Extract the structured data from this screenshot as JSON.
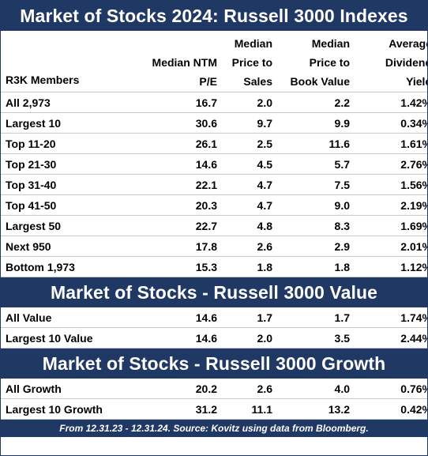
{
  "title": "Market of Stocks 2024: Russell 3000 Indexes",
  "columns": {
    "c0": "R3K Members",
    "c1": [
      "Median NTM",
      "P/E"
    ],
    "c2": [
      "Median",
      "Price to",
      "Sales"
    ],
    "c3": [
      "Median",
      "Price to",
      "Book Value"
    ],
    "c4": [
      "Average",
      "Dividend",
      "Yield"
    ]
  },
  "sections": [
    {
      "title": "",
      "rows": [
        {
          "label": "All 2,973",
          "pe": "16.7",
          "ps": "2.0",
          "pb": "2.2",
          "dy": "1.42%"
        },
        {
          "label": "Largest 10",
          "pe": "30.6",
          "ps": "9.7",
          "pb": "9.9",
          "dy": "0.34%"
        },
        {
          "label": "Top 11-20",
          "pe": "26.1",
          "ps": "2.5",
          "pb": "11.6",
          "dy": "1.61%"
        },
        {
          "label": "Top 21-30",
          "pe": "14.6",
          "ps": "4.5",
          "pb": "5.7",
          "dy": "2.76%"
        },
        {
          "label": "Top 31-40",
          "pe": "22.1",
          "ps": "4.7",
          "pb": "7.5",
          "dy": "1.56%"
        },
        {
          "label": "Top 41-50",
          "pe": "20.3",
          "ps": "4.7",
          "pb": "9.0",
          "dy": "2.19%"
        },
        {
          "label": "Largest 50",
          "pe": "22.7",
          "ps": "4.8",
          "pb": "8.3",
          "dy": "1.69%"
        },
        {
          "label": "Next 950",
          "pe": "17.8",
          "ps": "2.6",
          "pb": "2.9",
          "dy": "2.01%"
        },
        {
          "label": "Bottom 1,973",
          "pe": "15.3",
          "ps": "1.8",
          "pb": "1.8",
          "dy": "1.12%"
        }
      ]
    },
    {
      "title": "Market of Stocks - Russell 3000 Value",
      "rows": [
        {
          "label": "All Value",
          "pe": "14.6",
          "ps": "1.7",
          "pb": "1.7",
          "dy": "1.74%"
        },
        {
          "label": "Largest 10 Value",
          "pe": "14.6",
          "ps": "2.0",
          "pb": "3.5",
          "dy": "2.44%"
        }
      ]
    },
    {
      "title": "Market of Stocks - Russell 3000 Growth",
      "rows": [
        {
          "label": "All Growth",
          "pe": "20.2",
          "ps": "2.6",
          "pb": "4.0",
          "dy": "0.76%"
        },
        {
          "label": "Largest 10 Growth",
          "pe": "31.2",
          "ps": "11.1",
          "pb": "13.2",
          "dy": "0.42%"
        }
      ]
    }
  ],
  "footer": "From 12.31.23 - 12.31.24. Source: Kovitz using data from Bloomberg.",
  "colors": {
    "header_band": "#1f3864",
    "header_text": "#ffffff",
    "grid_line": "#c9c9c9"
  }
}
